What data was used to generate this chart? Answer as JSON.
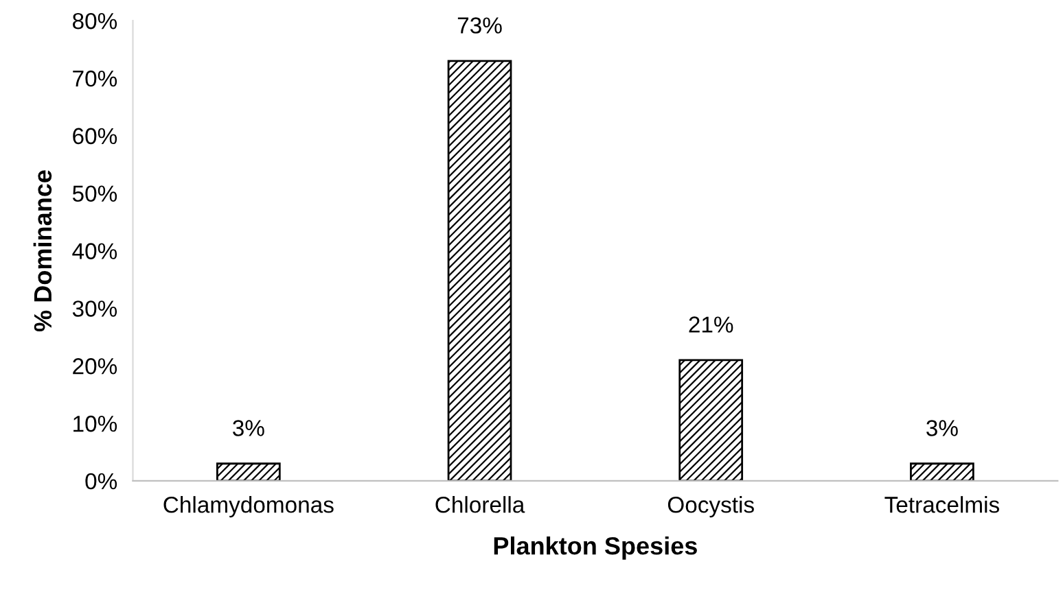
{
  "chart_data": {
    "type": "bar",
    "xlabel": "Plankton Spesies",
    "ylabel": "% Dominance",
    "categories": [
      "Chlamydomonas",
      "Chlorella",
      "Oocystis",
      "Tetracelmis"
    ],
    "values": [
      3,
      73,
      21,
      3
    ],
    "value_labels": [
      "3%",
      "73%",
      "21%",
      "3%"
    ],
    "color": "#000000",
    "ylim": [
      0,
      80
    ],
    "yticks": [
      {
        "value": 0,
        "label": "0%"
      },
      {
        "value": 10,
        "label": "10%"
      },
      {
        "value": 20,
        "label": "20%"
      },
      {
        "value": 30,
        "label": "30%"
      },
      {
        "value": 40,
        "label": "40%"
      },
      {
        "value": 50,
        "label": "50%"
      },
      {
        "value": 60,
        "label": "60%"
      },
      {
        "value": 70,
        "label": "70%"
      },
      {
        "value": 80,
        "label": "80%"
      }
    ],
    "grid": false,
    "legend": false
  }
}
